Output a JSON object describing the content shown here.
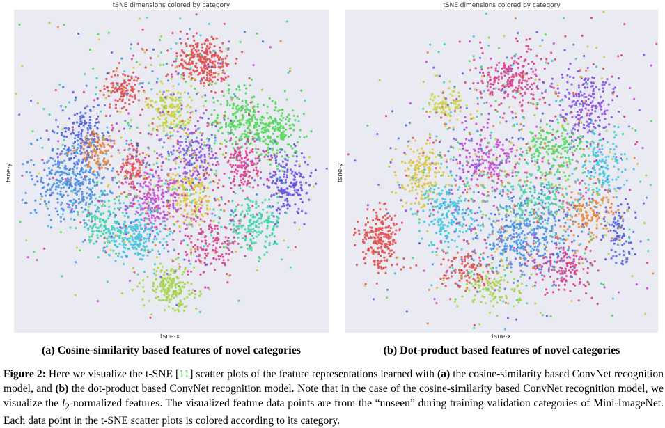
{
  "figure": {
    "panels": [
      {
        "title": "tSNE dimensions colored by category",
        "xlabel": "tsne-x",
        "ylabel": "tsne-y",
        "subcaption": "(a) Cosine-similarity based features of novel categories"
      },
      {
        "title": "tSNE dimensions colored by category",
        "xlabel": "tsne-x",
        "ylabel": "tsne-y",
        "subcaption": "(b) Dot-product based features of novel categories"
      }
    ],
    "caption": {
      "label": "Figure 2:",
      "t1": " Here we visualize the t-SNE [",
      "ref": "11",
      "t2": "] scatter plots of the feature representations learned with ",
      "a": "(a)",
      "t3": " the cosine-similarity based ConvNet recognition model, and ",
      "b": "(b)",
      "t4": " the dot-product based ConvNet recognition model. Note that in the case of the cosine-similarity based ConvNet recognition model, we visualize the ",
      "l2_base": "l",
      "l2_sub": "2",
      "t5": "-normalized features.  The visualized feature data points are from the “unseen” during training validation categories of Mini-ImageNet. Each data point in the t-SNE scatter plots is colored according to its category."
    }
  },
  "chart_data": [
    {
      "type": "scatter",
      "title": "tSNE dimensions colored by category",
      "xlabel": "tsne-x",
      "ylabel": "tsne-y",
      "grid": false,
      "point_colors": [
        "#e05252",
        "#d9448f",
        "#c94fd6",
        "#8e55e0",
        "#5566dd",
        "#4a90e2",
        "#45c8e0",
        "#43d6a8",
        "#57d65f",
        "#a6d64a",
        "#dcc743",
        "#e88a43"
      ],
      "clusters": [
        {
          "cx": 0.6,
          "cy": 0.16,
          "sx": 0.045,
          "sy": 0.04,
          "n": 260,
          "color": "#e05252"
        },
        {
          "cx": 0.35,
          "cy": 0.25,
          "sx": 0.03,
          "sy": 0.03,
          "n": 110,
          "color": "#e05252"
        },
        {
          "cx": 0.5,
          "cy": 0.31,
          "sx": 0.035,
          "sy": 0.035,
          "n": 160,
          "color": "#c8d645"
        },
        {
          "cx": 0.18,
          "cy": 0.53,
          "sx": 0.06,
          "sy": 0.06,
          "n": 350,
          "color": "#4a90e2"
        },
        {
          "cx": 0.22,
          "cy": 0.39,
          "sx": 0.035,
          "sy": 0.05,
          "n": 150,
          "color": "#5566dd"
        },
        {
          "cx": 0.27,
          "cy": 0.44,
          "sx": 0.03,
          "sy": 0.03,
          "n": 100,
          "color": "#e88a43"
        },
        {
          "cx": 0.72,
          "cy": 0.35,
          "sx": 0.045,
          "sy": 0.05,
          "n": 220,
          "color": "#57d65f"
        },
        {
          "cx": 0.83,
          "cy": 0.38,
          "sx": 0.04,
          "sy": 0.045,
          "n": 200,
          "color": "#57d65f"
        },
        {
          "cx": 0.87,
          "cy": 0.54,
          "sx": 0.035,
          "sy": 0.05,
          "n": 180,
          "color": "#6a55e0"
        },
        {
          "cx": 0.56,
          "cy": 0.57,
          "sx": 0.035,
          "sy": 0.06,
          "n": 190,
          "color": "#dcc743"
        },
        {
          "cx": 0.45,
          "cy": 0.59,
          "sx": 0.05,
          "sy": 0.05,
          "n": 220,
          "color": "#c94fd6"
        },
        {
          "cx": 0.38,
          "cy": 0.7,
          "sx": 0.05,
          "sy": 0.04,
          "n": 240,
          "color": "#45c8e0"
        },
        {
          "cx": 0.5,
          "cy": 0.86,
          "sx": 0.04,
          "sy": 0.035,
          "n": 190,
          "color": "#a6d64a"
        },
        {
          "cx": 0.73,
          "cy": 0.48,
          "sx": 0.04,
          "sy": 0.04,
          "n": 150,
          "color": "#d9448f"
        },
        {
          "cx": 0.38,
          "cy": 0.49,
          "sx": 0.025,
          "sy": 0.035,
          "n": 90,
          "color": "#e05252"
        },
        {
          "cx": 0.76,
          "cy": 0.66,
          "sx": 0.05,
          "sy": 0.04,
          "n": 200,
          "color": "#43d6a8"
        },
        {
          "cx": 0.57,
          "cy": 0.45,
          "sx": 0.04,
          "sy": 0.04,
          "n": 140,
          "color": "#8e55e0"
        },
        {
          "cx": 0.62,
          "cy": 0.72,
          "sx": 0.05,
          "sy": 0.05,
          "n": 160,
          "color": "#d9448f"
        },
        {
          "cx": 0.28,
          "cy": 0.66,
          "sx": 0.04,
          "sy": 0.04,
          "n": 120,
          "color": "#43d6a8"
        },
        {
          "cx": 0.47,
          "cy": 0.44,
          "sx": 0.2,
          "sy": 0.22,
          "n": 700,
          "color": "mixed"
        }
      ]
    },
    {
      "type": "scatter",
      "title": "tSNE dimensions colored by category",
      "xlabel": "tsne-x",
      "ylabel": "tsne-y",
      "grid": false,
      "point_colors": [
        "#e05252",
        "#d9448f",
        "#c94fd6",
        "#8e55e0",
        "#5566dd",
        "#4a90e2",
        "#45c8e0",
        "#43d6a8",
        "#57d65f",
        "#a6d64a",
        "#dcc743",
        "#e88a43"
      ],
      "clusters": [
        {
          "cx": 0.11,
          "cy": 0.71,
          "sx": 0.035,
          "sy": 0.045,
          "n": 230,
          "color": "#e05252"
        },
        {
          "cx": 0.24,
          "cy": 0.51,
          "sx": 0.035,
          "sy": 0.05,
          "n": 170,
          "color": "#dcc743"
        },
        {
          "cx": 0.33,
          "cy": 0.29,
          "sx": 0.03,
          "sy": 0.03,
          "n": 80,
          "color": "#c8d645"
        },
        {
          "cx": 0.33,
          "cy": 0.63,
          "sx": 0.045,
          "sy": 0.05,
          "n": 200,
          "color": "#45c8e0"
        },
        {
          "cx": 0.57,
          "cy": 0.7,
          "sx": 0.08,
          "sy": 0.06,
          "n": 380,
          "color": "#4a90e2"
        },
        {
          "cx": 0.53,
          "cy": 0.22,
          "sx": 0.05,
          "sy": 0.04,
          "n": 200,
          "color": "#d9448f"
        },
        {
          "cx": 0.76,
          "cy": 0.3,
          "sx": 0.05,
          "sy": 0.06,
          "n": 200,
          "color": "#8e55e0"
        },
        {
          "cx": 0.67,
          "cy": 0.43,
          "sx": 0.05,
          "sy": 0.05,
          "n": 170,
          "color": "#57d65f"
        },
        {
          "cx": 0.45,
          "cy": 0.48,
          "sx": 0.05,
          "sy": 0.05,
          "n": 170,
          "color": "#c94fd6"
        },
        {
          "cx": 0.7,
          "cy": 0.8,
          "sx": 0.05,
          "sy": 0.04,
          "n": 140,
          "color": "#d9448f"
        },
        {
          "cx": 0.78,
          "cy": 0.62,
          "sx": 0.05,
          "sy": 0.05,
          "n": 160,
          "color": "#e88a43"
        },
        {
          "cx": 0.61,
          "cy": 0.58,
          "sx": 0.05,
          "sy": 0.04,
          "n": 140,
          "color": "#43d6a8"
        },
        {
          "cx": 0.47,
          "cy": 0.86,
          "sx": 0.05,
          "sy": 0.035,
          "n": 120,
          "color": "#a6d64a"
        },
        {
          "cx": 0.82,
          "cy": 0.48,
          "sx": 0.04,
          "sy": 0.05,
          "n": 130,
          "color": "#45c8e0"
        },
        {
          "cx": 0.38,
          "cy": 0.81,
          "sx": 0.04,
          "sy": 0.04,
          "n": 100,
          "color": "#e05252"
        },
        {
          "cx": 0.88,
          "cy": 0.7,
          "sx": 0.03,
          "sy": 0.05,
          "n": 90,
          "color": "#5566dd"
        },
        {
          "cx": 0.54,
          "cy": 0.5,
          "sx": 0.22,
          "sy": 0.23,
          "n": 900,
          "color": "mixed"
        }
      ]
    }
  ]
}
